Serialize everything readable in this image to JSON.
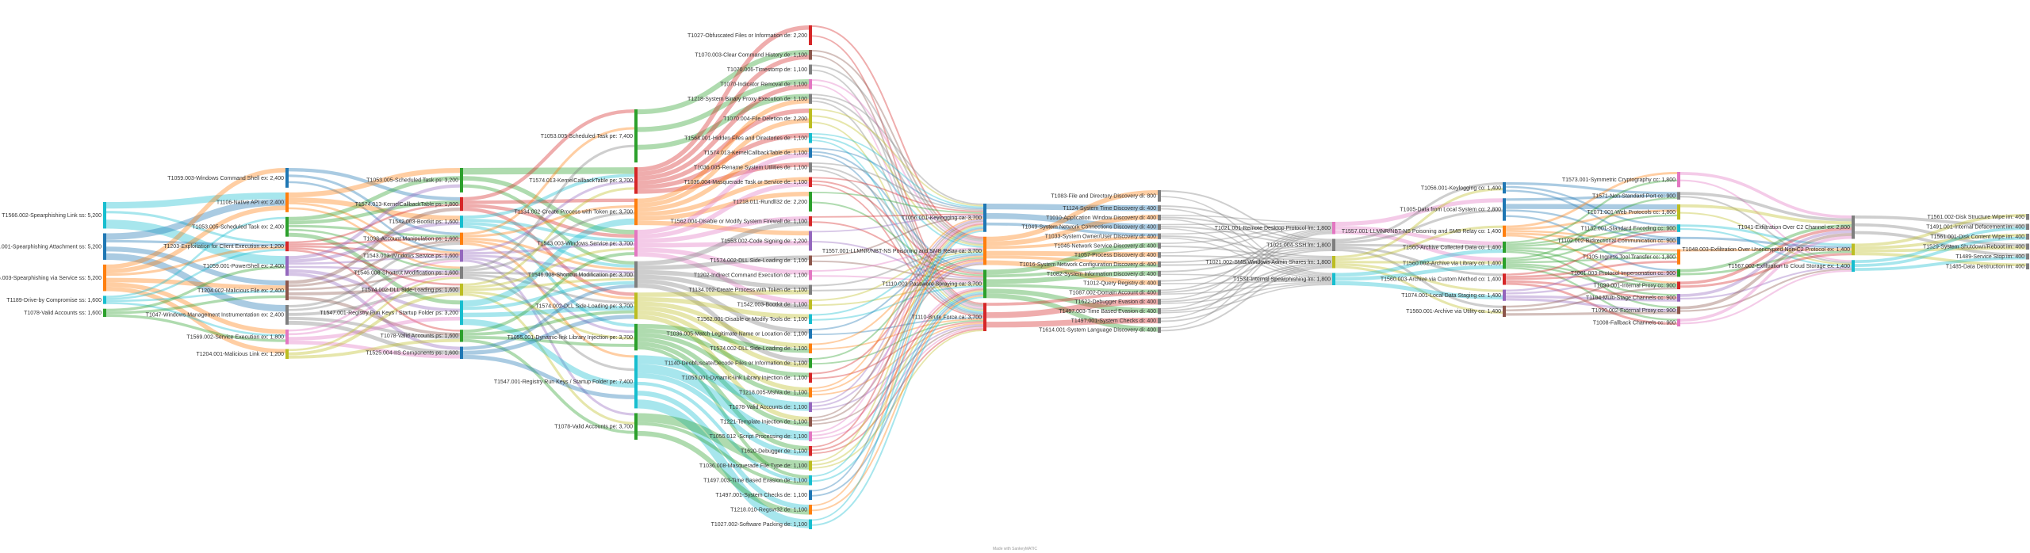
{
  "footer": "Made with SankeyMATIC",
  "palette": [
    "#1f77b4",
    "#ff7f0e",
    "#2ca02c",
    "#d62728",
    "#9467bd",
    "#8c564b",
    "#e377c2",
    "#7f7f7f",
    "#bcbd22",
    "#17becf"
  ],
  "columns": [
    {
      "nodes": [
        {
          "id": "T1566.002-Spearphishing Link",
          "label": "T1566.002-Spearphishing Link ss: 5,200",
          "color": "#17becf"
        },
        {
          "id": "T1566.001-Spearphishing Attachment",
          "label": "T1566.001-Spearphishing Attachment ss: 5,200",
          "color": "#1f77b4"
        },
        {
          "id": "T1566.003-Spearphishing via Service",
          "label": "T1566.003-Spearphishing via Service ss: 5,200",
          "color": "#ff7f0e"
        },
        {
          "id": "T1189-Drive-by Compromise",
          "label": "T1189-Drive-by Compromise ss: 1,600",
          "color": "#17becf"
        },
        {
          "id": "T1078-Valid Accounts",
          "label": "T1078-Valid Accounts ss: 1,600",
          "color": "#2ca02c"
        }
      ]
    },
    {
      "nodes": [
        {
          "id": "T1059.003-Windows Command Shell",
          "label": "T1059.003-Windows Command Shell ex: 2,400",
          "color": "#1f77b4"
        },
        {
          "id": "T1106-Native API",
          "label": "T1106-Native API ex: 2,400",
          "color": "#ff7f0e"
        },
        {
          "id": "T1053.005-Scheduled Task ex",
          "label": "T1053.005-Scheduled Task ex: 2,400",
          "color": "#2ca02c"
        },
        {
          "id": "T1203-Exploitation for Client Execution",
          "label": "T1203-Exploitation for Client Execution ex: 1,200",
          "color": "#d62728"
        },
        {
          "id": "T1059.001-PowerShell",
          "label": "T1059.001-PowerShell ex: 2,400",
          "color": "#9467bd"
        },
        {
          "id": "T1204.002-Malicious File",
          "label": "T1204.002-Malicious File ex: 2,400",
          "color": "#8c564b"
        },
        {
          "id": "T1047-Windows Management Instrumentation",
          "label": "T1047-Windows Management Instrumentation ex: 2,400",
          "color": "#7f7f7f"
        },
        {
          "id": "T1569.002-Service Execution",
          "label": "T1569.002-Service Execution ex: 1,800",
          "color": "#e377c2"
        },
        {
          "id": "T1204.001-Malicious Link",
          "label": "T1204.001-Malicious Link ex: 1,200",
          "color": "#bcbd22"
        }
      ]
    },
    {
      "nodes": [
        {
          "id": "T1053.005-Scheduled Task ps",
          "label": "T1053.005-Scheduled Task ps: 3,200",
          "color": "#2ca02c"
        },
        {
          "id": "T1574.013-KernelCallbackTable",
          "label": "T1574.013-KernelCallbackTable ps: 1,800",
          "color": "#d62728"
        },
        {
          "id": "T1542.003-Bootkit",
          "label": "T1542.003-Bootkit ps: 1,600",
          "color": "#17becf"
        },
        {
          "id": "T1098-Account Manipulation",
          "label": "T1098-Account Manipulation ps: 1,600",
          "color": "#ff7f0e"
        },
        {
          "id": "T1543.003-Windows Service ps",
          "label": "T1543.003-Windows Service ps: 1,600",
          "color": "#9467bd"
        },
        {
          "id": "T1546.008-Shortcut Modification",
          "label": "T1546.008-Shortcut Modification ps: 1,600",
          "color": "#7f7f7f"
        },
        {
          "id": "T1574.002-DLL Side-Loading",
          "label": "T1574.002-DLL Side-Loading ps: 1,600",
          "color": "#bcbd22"
        },
        {
          "id": "T1547.001-Registry Run Keys ps",
          "label": "T1547.001-Registry Run Keys / Startup Folder ps: 3,200",
          "color": "#17becf"
        },
        {
          "id": "T1078-Valid Accounts ps",
          "label": "T1078-Valid Accounts ps: 1,600",
          "color": "#2ca02c"
        },
        {
          "id": "T1525.004-IIS Components",
          "label": "T1525.004-IIS Components ps: 1,600",
          "color": "#1f77b4"
        }
      ]
    },
    {
      "nodes": [
        {
          "id": "T1053.005-Scheduled Task pe",
          "label": "T1053.005-Scheduled Task pe: 7,400",
          "color": "#2ca02c"
        },
        {
          "id": "T1574.013-KernelCallbackTable pe",
          "label": "T1574.013-KernelCallbackTable pe: 3,700",
          "color": "#d62728"
        },
        {
          "id": "T1134.002-Create Process with Token",
          "label": "T1134.002-Create Process with Token pe: 3,700",
          "color": "#ff7f0e"
        },
        {
          "id": "T1543.003-Windows Service pe",
          "label": "T1543.003-Windows Service pe: 3,700",
          "color": "#e377c2"
        },
        {
          "id": "T1546.008-Shortcut Modification pe",
          "label": "T1546.008-Shortcut Modification pe: 3,700",
          "color": "#7f7f7f"
        },
        {
          "id": "T1574.002-DLL Side-Loading pe",
          "label": "T1574.002-DLL Side-Loading pe: 3,700",
          "color": "#bcbd22"
        },
        {
          "id": "T1055.001-Dynamic-link Library Injection pe",
          "label": "T1055.001-Dynamic-link Library Injection pe: 3,700",
          "color": "#2ca02c"
        },
        {
          "id": "T1547.001-Registry Run Keys pe",
          "label": "T1547.001-Registry Run Keys / Startup Folder pe: 7,400",
          "color": "#17becf"
        },
        {
          "id": "T1078-Valid Accounts pe",
          "label": "T1078-Valid Accounts pe: 3,700",
          "color": "#2ca02c"
        }
      ]
    },
    {
      "nodes": [
        {
          "id": "T1027",
          "label": "T1027-Obfuscated Files or Information de: 2,200",
          "color": "#d62728"
        },
        {
          "id": "T1070.003",
          "label": "T1070.003-Clear Command History de: 1,100",
          "color": "#8c564b"
        },
        {
          "id": "T1070.006",
          "label": "T1070.006-Timestomp de: 1,100",
          "color": "#7f7f7f"
        },
        {
          "id": "T1070",
          "label": "T1070-Indicator Removal de: 1,100",
          "color": "#e377c2"
        },
        {
          "id": "T1218",
          "label": "T1218-System Binary Proxy Execution de: 1,100",
          "color": "#7f7f7f"
        },
        {
          "id": "T1070.004",
          "label": "T1070.004-File Deletion de: 2,200",
          "color": "#bcbd22"
        },
        {
          "id": "T1564.001",
          "label": "T1564.001-Hidden Files and Directories de: 1,100",
          "color": "#17becf"
        },
        {
          "id": "T1574.013 de",
          "label": "T1574.013-KernelCallbackTable de: 1,100",
          "color": "#1f77b4"
        },
        {
          "id": "T1036.005",
          "label": "T1036.005-Rename System Utilities de: 1,100",
          "color": "#7f7f7f"
        },
        {
          "id": "T1036.004",
          "label": "T1036.004-Masquerade Task or Service de: 1,100",
          "color": "#d62728"
        },
        {
          "id": "T1218.011",
          "label": "T1218.011-Rundll32 de: 2,200",
          "color": "#2ca02c"
        },
        {
          "id": "T1562.004",
          "label": "T1562.004-Disable or Modify System Firewall de: 1,100",
          "color": "#d62728"
        },
        {
          "id": "T1553.002",
          "label": "T1553.002-Code Signing de: 2,200",
          "color": "#9467bd"
        },
        {
          "id": "T1574.002 de",
          "label": "T1574.002-DLL Side-Loading de: 1,100",
          "color": "#8c564b"
        },
        {
          "id": "T1202",
          "label": "T1202-Indirect Command Execution de: 1,100",
          "color": "#e377c2"
        },
        {
          "id": "T1134.002 de",
          "label": "T1134.002-Create Process with Token de: 1,100",
          "color": "#7f7f7f"
        },
        {
          "id": "T1542.003 de",
          "label": "T1542.003-Bootkit de: 1,100",
          "color": "#bcbd22"
        },
        {
          "id": "T1562.001",
          "label": "T1562.001-Disable or Modify Tools de: 1,100",
          "color": "#17becf"
        },
        {
          "id": "T1036",
          "label": "T1036.005-Match Legitimate Name or Location de: 1,100",
          "color": "#1f77b4"
        },
        {
          "id": "T1574.001",
          "label": "T1574.002-DLL Side-Loading de: 1,100",
          "color": "#ff7f0e"
        },
        {
          "id": "T1140",
          "label": "T1140-Deobfuscate/Decode Files or Information de: 1,100",
          "color": "#2ca02c"
        },
        {
          "id": "T1055.001 de",
          "label": "T1055.001-Dynamic-link Library Injection de: 1,100",
          "color": "#d62728"
        },
        {
          "id": "T1218.005",
          "label": "T1218.005-Mshta de: 1,100",
          "color": "#ff7f0e"
        },
        {
          "id": "T1078 de",
          "label": "T1078-Valid Accounts de: 1,100",
          "color": "#9467bd"
        },
        {
          "id": "T1221",
          "label": "T1221-Template Injection de: 1,100",
          "color": "#8c564b"
        },
        {
          "id": "T1055.012",
          "label": "T1055.012 -Script Processing de: 1,100",
          "color": "#e377c2"
        },
        {
          "id": "T1620",
          "label": "T1620-Debugger de: 1,100",
          "color": "#d62728"
        },
        {
          "id": "T1036.008",
          "label": "T1036.008-Masquerade File Type de: 1,100",
          "color": "#bcbd22"
        },
        {
          "id": "T1497.003",
          "label": "T1497.003-Time Based Evasion de: 1,100",
          "color": "#17becf"
        },
        {
          "id": "T1497.001",
          "label": "T1497.001-System Checks de: 1,100",
          "color": "#1f77b4"
        },
        {
          "id": "T1218.010",
          "label": "T1218.010-Regsvr32 de: 1,100",
          "color": "#ff7f0e"
        },
        {
          "id": "T1027.002",
          "label": "T1027.002-Software Packing de: 1,100",
          "color": "#17becf"
        }
      ]
    },
    {
      "nodes": [
        {
          "id": "T1056.001-Keylogging ca",
          "label": "T1056.001-Keylogging ca: 3,700",
          "color": "#1f77b4"
        },
        {
          "id": "T1557.001-LLMNR/NBT-NS ca",
          "label": "T1557.001-LLMNR/NBT-NS Poisoning and SMB Relay ca: 3,700",
          "color": "#ff7f0e"
        },
        {
          "id": "T1110.003-Password Spraying ca",
          "label": "T1110.003-Password Spraying ca: 3,700",
          "color": "#2ca02c"
        },
        {
          "id": "T1110-Brute Force ca",
          "label": "T1110-Brute Force ca: 3,700",
          "color": "#d62728"
        }
      ]
    },
    {
      "nodes": [
        {
          "id": "T1083",
          "label": "T1083-File and Directory Discovery di: 800",
          "color": "#7f7f7f"
        },
        {
          "id": "T1124",
          "label": "T1124-System Time Discovery di: 400",
          "color": "#7f7f7f"
        },
        {
          "id": "T1010",
          "label": "T1010-Application Window Discovery di: 400",
          "color": "#7f7f7f"
        },
        {
          "id": "T1049",
          "label": "T1049-System Network Connections Discovery di: 400",
          "color": "#7f7f7f"
        },
        {
          "id": "T1033",
          "label": "T1033-System Owner/User Discovery di: 400",
          "color": "#7f7f7f"
        },
        {
          "id": "T1046",
          "label": "T1046-Network Service Discovery di: 400",
          "color": "#7f7f7f"
        },
        {
          "id": "T1057",
          "label": "T1057-Process Discovery di: 400",
          "color": "#7f7f7f"
        },
        {
          "id": "T1016",
          "label": "T1016-System Network Configuration Discovery di: 400",
          "color": "#7f7f7f"
        },
        {
          "id": "T1082",
          "label": "T1082-System Information Discovery di: 400",
          "color": "#7f7f7f"
        },
        {
          "id": "T1012",
          "label": "T1012-Query Registry di: 400",
          "color": "#7f7f7f"
        },
        {
          "id": "T1087.002",
          "label": "T1087.002-Domain Account di: 400",
          "color": "#7f7f7f"
        },
        {
          "id": "T1622",
          "label": "T1622-Debugger Evasion di: 400",
          "color": "#7f7f7f"
        },
        {
          "id": "T1497.003 di",
          "label": "T1497.003-Time Based Evasion di: 400",
          "color": "#7f7f7f"
        },
        {
          "id": "T1497.001 di",
          "label": "T1497.001-System Checks di: 400",
          "color": "#7f7f7f"
        },
        {
          "id": "T1614.001",
          "label": "T1614.001-System Language Discovery di: 400",
          "color": "#7f7f7f"
        }
      ]
    },
    {
      "nodes": [
        {
          "id": "T1021.001-Remote Desktop Protocol lm",
          "label": "T1021.001-Remote Desktop Protocol lm: 1,800",
          "color": "#e377c2"
        },
        {
          "id": "T1021.004-SSH lm",
          "label": "T1021.004-SSH lm: 1,800",
          "color": "#7f7f7f"
        },
        {
          "id": "T1021.002-SMB lm",
          "label": "T1021.002-SMB/Windows Admin Shares lm: 1,800",
          "color": "#bcbd22"
        },
        {
          "id": "T1534-Internal Spearphishing lm",
          "label": "T1534-Internal Spearphishing lm: 1,800",
          "color": "#17becf"
        }
      ]
    },
    {
      "nodes": [
        {
          "id": "T1056.001-Keylogging co",
          "label": "T1056.001-Keylogging co: 1,400",
          "color": "#1f77b4"
        },
        {
          "id": "T1005-Data from Local System",
          "label": "T1005-Data from Local System co: 2,800",
          "color": "#1f77b4"
        },
        {
          "id": "T1557.001-LLMNR co",
          "label": "T1557.001-LLMNR/NBT-NS Poisoning and SMB Relay co: 1,400",
          "color": "#ff7f0e"
        },
        {
          "id": "T1560-Archive Collected Data",
          "label": "T1560-Archive Collected Data co: 1,400",
          "color": "#2ca02c"
        },
        {
          "id": "T1560.002-Archive via Library",
          "label": "T1560.002-Archive via Library co: 1,400",
          "color": "#2ca02c"
        },
        {
          "id": "T1560.003-Archive via Custom Method",
          "label": "T1560.003-Archive via Custom Method co: 1,400",
          "color": "#d62728"
        },
        {
          "id": "T1074.001-Local Data Staging",
          "label": "T1074.001-Local Data Staging co: 1,400",
          "color": "#9467bd"
        },
        {
          "id": "T1560.001-Archive via Utility",
          "label": "T1560.001-Archive via Utility co: 1,400",
          "color": "#8c564b"
        }
      ]
    },
    {
      "nodes": [
        {
          "id": "T1573.001-Symmetric Cryptography",
          "label": "T1573.001-Symmetric Cryptography cc: 1,800",
          "color": "#e377c2"
        },
        {
          "id": "T1571-Non-Standard Port",
          "label": "T1571-Non-Standard Port cc: 900",
          "color": "#7f7f7f"
        },
        {
          "id": "T1071.001-Web Protocols",
          "label": "T1071.001-Web Protocols cc: 1,800",
          "color": "#bcbd22"
        },
        {
          "id": "T1132.001-Standard Encoding",
          "label": "T1132.001-Standard Encoding cc: 900",
          "color": "#17becf"
        },
        {
          "id": "T1102.002-Bidirectional Communication",
          "label": "T1102.002-Bidirectional Communication cc: 900",
          "color": "#1f77b4"
        },
        {
          "id": "T1105-Ingress Tool Transfer",
          "label": "T1105-Ingress Tool Transfer cc: 1,800",
          "color": "#ff7f0e"
        },
        {
          "id": "T1001.003-Protocol Impersonation",
          "label": "T1001.003-Protocol Impersonation cc: 900",
          "color": "#2ca02c"
        },
        {
          "id": "T1090.001-Internal Proxy",
          "label": "T1090.001-Internal Proxy cc: 900",
          "color": "#d62728"
        },
        {
          "id": "T1104-Multi-Stage Channels",
          "label": "T1104-Multi-Stage Channels cc: 900",
          "color": "#9467bd"
        },
        {
          "id": "T1090.002-External Proxy",
          "label": "T1090.002-External Proxy cc: 900",
          "color": "#8c564b"
        },
        {
          "id": "T1008-Fallback Channels",
          "label": "T1008-Fallback Channels cc: 900",
          "color": "#e377c2"
        }
      ]
    },
    {
      "nodes": [
        {
          "id": "T1041-Exfiltration Over C2 Channel",
          "label": "T1041-Exfiltration Over C2 Channel ex: 2,800",
          "color": "#7f7f7f"
        },
        {
          "id": "T1048.003-Exfiltration Over Unencrypted Non-C2 Protocol",
          "label": "T1048.003-Exfiltration Over Unencrypted Non-C2 Protocol ex: 1,400",
          "color": "#bcbd22"
        },
        {
          "id": "T1567.002-Exfiltration to Cloud Storage",
          "label": "T1567.002-Exfiltration to Cloud Storage ex: 1,400",
          "color": "#17becf"
        }
      ]
    },
    {
      "nodes": [
        {
          "id": "T1561.002-Disk Structure Wipe",
          "label": "T1561.002-Disk Structure Wipe im: 400",
          "color": "#7f7f7f"
        },
        {
          "id": "T1561.001-Internal Defacement",
          "label": "T1491.001-Internal Defacement im: 400",
          "color": "#7f7f7f"
        },
        {
          "id": "T1561.001-Disk Content Wipe",
          "label": "T1561.001-Disk Content Wipe im: 400",
          "color": "#7f7f7f"
        },
        {
          "id": "T1529-System Shutdown/Reboot",
          "label": "T1529-System Shutdown/Reboot im: 400",
          "color": "#7f7f7f"
        },
        {
          "id": "T1489-Service Stop",
          "label": "T1489-Service Stop im: 400",
          "color": "#7f7f7f"
        },
        {
          "id": "T1485-Data Destruction",
          "label": "T1485-Data Destruction im: 400",
          "color": "#7f7f7f"
        }
      ]
    }
  ]
}
